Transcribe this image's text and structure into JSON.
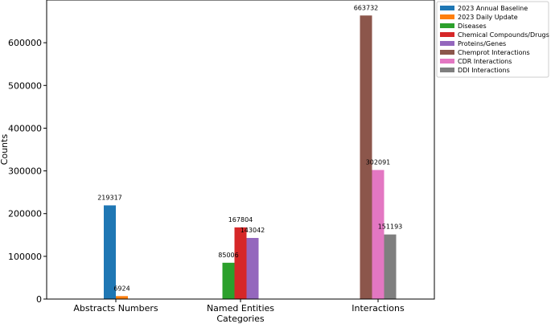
{
  "chart_data": {
    "type": "bar",
    "title": "",
    "xlabel": "Categories",
    "ylabel": "Counts",
    "ylim": [
      0,
      700000
    ],
    "yticks": [
      0,
      100000,
      200000,
      300000,
      400000,
      500000,
      600000
    ],
    "ytick_labels": [
      "0",
      "100000",
      "200000",
      "300000",
      "400000",
      "500000",
      "600000"
    ],
    "categories": [
      "Abstracts Numbers",
      "Named Entities",
      "Interactions"
    ],
    "legend_position": "outside top-right",
    "series": [
      {
        "name": "2023 Annual Baseline",
        "color": "#1f77b4",
        "values": [
          219317,
          null,
          null
        ]
      },
      {
        "name": "2023 Daily Update",
        "color": "#ff7f0e",
        "values": [
          6924,
          null,
          null
        ]
      },
      {
        "name": "Diseases",
        "color": "#2ca02c",
        "values": [
          null,
          85006,
          null
        ]
      },
      {
        "name": "Chemical Compounds/Drugs",
        "color": "#d62728",
        "values": [
          null,
          167804,
          null
        ]
      },
      {
        "name": "Proteins/Genes",
        "color": "#9467bd",
        "values": [
          null,
          143042,
          null
        ]
      },
      {
        "name": "Chemprot Interactions",
        "color": "#8c564b",
        "values": [
          null,
          null,
          663732
        ]
      },
      {
        "name": "CDR Interactions",
        "color": "#e377c2",
        "values": [
          null,
          null,
          302091
        ]
      },
      {
        "name": "DDI Interactions",
        "color": "#7f7f7f",
        "values": [
          null,
          null,
          151193
        ]
      }
    ]
  }
}
